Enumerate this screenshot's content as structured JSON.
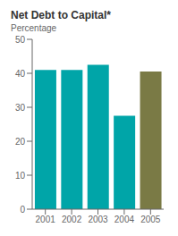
{
  "chart_data": {
    "type": "bar",
    "title": "Net Debt to Capital*",
    "ylabel": "Percentage",
    "categories": [
      "2001",
      "2002",
      "2003",
      "2004",
      "2005"
    ],
    "values": [
      41.0,
      41.0,
      42.5,
      27.5,
      40.5
    ],
    "colors": [
      "#00a5a8",
      "#00a5a8",
      "#00a5a8",
      "#00a5a8",
      "#7a7a45"
    ],
    "ylim": [
      0,
      50
    ],
    "yticks": [
      0,
      10,
      20,
      30,
      40,
      50
    ],
    "grid": false
  }
}
